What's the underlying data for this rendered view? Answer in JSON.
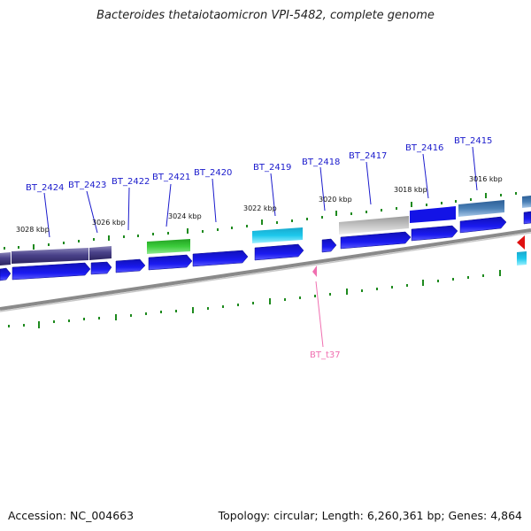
{
  "title": "Bacteroides thetaiotaomicron VPI-5482, complete genome",
  "footer": {
    "accession": "Accession: NC_004663",
    "summary": "Topology: circular; Length: 6,260,361 bp; Genes: 4,864"
  },
  "colors": {
    "cds": "#1212e0",
    "backbone": "#8a8a8a",
    "tick": "#1e8a1e",
    "rna": "#f06fb0",
    "gene_label": "#1a1acc"
  },
  "gene_labels": [
    "BT_2424",
    "BT_2423",
    "BT_2422",
    "BT_2421",
    "BT_2420",
    "BT_2419",
    "BT_2418",
    "BT_2417",
    "BT_2416",
    "BT_2415"
  ],
  "rna_label": "BT_t37",
  "kbp_labels": [
    "3028 kbp",
    "3026 kbp",
    "3024 kbp",
    "3022 kbp",
    "3020 kbp",
    "3018 kbp",
    "3016 kbp"
  ]
}
